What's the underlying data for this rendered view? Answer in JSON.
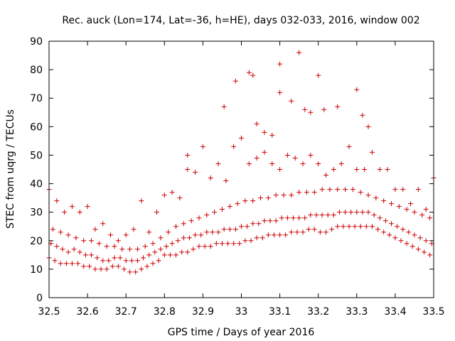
{
  "chart_data": {
    "type": "scatter",
    "title": "Rec. auck (Lon=174, Lat=-36, h=HE), days 032-033, 2016, window 002",
    "xlabel": "GPS time / Days of year 2016",
    "ylabel": "STEC from uqrg / TECUs",
    "xlim": [
      32.5,
      33.5
    ],
    "ylim": [
      0,
      90
    ],
    "xticks": [
      "32.5",
      "32.6",
      "32.7",
      "32.8",
      "32.9",
      "33",
      "33.1",
      "33.2",
      "33.3",
      "33.4",
      "33.5"
    ],
    "yticks": [
      "0",
      "10",
      "20",
      "30",
      "40",
      "50",
      "60",
      "70",
      "80",
      "90"
    ],
    "marker": "+",
    "color": "#cc0000",
    "series": [
      {
        "name": "band_low",
        "x": [
          32.5,
          32.515,
          32.53,
          32.545,
          32.56,
          32.575,
          32.59,
          32.605,
          32.62,
          32.635,
          32.65,
          32.665,
          32.68,
          32.695,
          32.71,
          32.725,
          32.74,
          32.755,
          32.77,
          32.785,
          32.8,
          32.815,
          32.83,
          32.845,
          32.86,
          32.875,
          32.89,
          32.905,
          32.92,
          32.935,
          32.95,
          32.965,
          32.98,
          32.995,
          33.01,
          33.025,
          33.04,
          33.055,
          33.07,
          33.085,
          33.1,
          33.115,
          33.13,
          33.145,
          33.16,
          33.175,
          33.19,
          33.205,
          33.22,
          33.235,
          33.25,
          33.265,
          33.28,
          33.295,
          33.31,
          33.325,
          33.34,
          33.355,
          33.37,
          33.385,
          33.4,
          33.415,
          33.43,
          33.445,
          33.46,
          33.475,
          33.49
        ],
        "y": [
          14,
          13,
          12,
          12,
          12,
          12,
          11,
          11,
          10,
          10,
          10,
          11,
          11,
          10,
          9,
          9,
          10,
          11,
          12,
          13,
          15,
          15,
          15,
          16,
          16,
          17,
          18,
          18,
          18,
          19,
          19,
          19,
          19,
          19,
          20,
          20,
          21,
          21,
          22,
          22,
          22,
          22,
          23,
          23,
          23,
          24,
          24,
          23,
          23,
          24,
          25,
          25,
          25,
          25,
          25,
          25,
          25,
          24,
          23,
          22,
          21,
          20,
          19,
          18,
          17,
          16,
          15
        ]
      },
      {
        "name": "band_mid",
        "x": [
          32.505,
          32.52,
          32.535,
          32.55,
          32.565,
          32.58,
          32.595,
          32.61,
          32.625,
          32.64,
          32.655,
          32.67,
          32.685,
          32.7,
          32.715,
          32.73,
          32.745,
          32.76,
          32.775,
          32.79,
          32.805,
          32.82,
          32.835,
          32.85,
          32.865,
          32.88,
          32.895,
          32.91,
          32.925,
          32.94,
          32.955,
          32.97,
          32.985,
          33.0,
          33.015,
          33.03,
          33.045,
          33.06,
          33.075,
          33.09,
          33.105,
          33.12,
          33.135,
          33.15,
          33.165,
          33.18,
          33.195,
          33.21,
          33.225,
          33.24,
          33.255,
          33.27,
          33.285,
          33.3,
          33.315,
          33.33,
          33.345,
          33.36,
          33.375,
          33.39,
          33.405,
          33.42,
          33.435,
          33.45,
          33.465,
          33.48,
          33.495
        ],
        "y": [
          19,
          18,
          17,
          16,
          17,
          16,
          15,
          15,
          14,
          13,
          13,
          14,
          14,
          13,
          13,
          13,
          14,
          15,
          16,
          17,
          18,
          19,
          20,
          21,
          21,
          22,
          22,
          23,
          23,
          23,
          24,
          24,
          24,
          25,
          25,
          26,
          26,
          27,
          27,
          27,
          28,
          28,
          28,
          28,
          28,
          29,
          29,
          29,
          29,
          29,
          30,
          30,
          30,
          30,
          30,
          30,
          29,
          28,
          27,
          26,
          25,
          24,
          23,
          22,
          21,
          20,
          19
        ]
      },
      {
        "name": "band_upper",
        "x": [
          32.51,
          32.53,
          32.55,
          32.57,
          32.59,
          32.61,
          32.63,
          32.65,
          32.67,
          32.69,
          32.71,
          32.73,
          32.75,
          32.77,
          32.79,
          32.81,
          32.83,
          32.85,
          32.87,
          32.89,
          32.91,
          32.93,
          32.95,
          32.97,
          32.99,
          33.01,
          33.03,
          33.05,
          33.07,
          33.09,
          33.11,
          33.13,
          33.15,
          33.17,
          33.19,
          33.21,
          33.23,
          33.25,
          33.27,
          33.29,
          33.31,
          33.33,
          33.35,
          33.37,
          33.39,
          33.41,
          33.43,
          33.45,
          33.47,
          33.49
        ],
        "y": [
          24,
          23,
          22,
          21,
          20,
          20,
          19,
          18,
          18,
          17,
          17,
          17,
          18,
          19,
          21,
          23,
          25,
          26,
          27,
          28,
          29,
          30,
          31,
          32,
          33,
          34,
          34,
          35,
          35,
          36,
          36,
          36,
          37,
          37,
          37,
          38,
          38,
          38,
          38,
          38,
          37,
          36,
          35,
          34,
          33,
          32,
          31,
          30,
          29,
          28
        ]
      },
      {
        "name": "band_high",
        "x": [
          32.5,
          32.52,
          32.54,
          32.56,
          32.58,
          32.6,
          32.62,
          32.64,
          32.66,
          32.68,
          32.7,
          32.72,
          32.74,
          32.76,
          32.78,
          32.8,
          32.82,
          32.84,
          32.86,
          32.88,
          32.9,
          32.92,
          32.94,
          32.96,
          32.98,
          33.0,
          33.02,
          33.04,
          33.06,
          33.08,
          33.1,
          33.12,
          33.14,
          33.16,
          33.18,
          33.2,
          33.22,
          33.24,
          33.26,
          33.28,
          33.3,
          33.32,
          33.34,
          33.36,
          33.38,
          33.4,
          33.42,
          33.44,
          33.46,
          33.48,
          33.5
        ],
        "y": [
          38,
          34,
          30,
          32,
          30,
          32,
          24,
          26,
          22,
          20,
          22,
          24,
          34,
          23,
          30,
          36,
          37,
          35,
          45,
          44,
          53,
          42,
          47,
          41,
          53,
          56,
          47,
          49,
          51,
          47,
          45,
          50,
          49,
          47,
          50,
          47,
          43,
          45,
          47,
          53,
          45,
          45,
          51,
          45,
          45,
          38,
          38,
          33,
          38,
          31,
          42
        ]
      },
      {
        "name": "outliers",
        "x": [
          32.955,
          32.985,
          33.02,
          33.03,
          33.1,
          33.1,
          33.15,
          33.165,
          33.2,
          33.215,
          33.25,
          33.3,
          33.315,
          33.04,
          33.13,
          33.18,
          33.33,
          32.86,
          33.08,
          33.06
        ],
        "y": [
          67,
          76,
          79,
          78,
          82,
          72,
          86,
          66,
          78,
          66,
          67,
          73,
          64,
          61,
          69,
          65,
          60,
          50,
          57,
          58
        ]
      }
    ]
  }
}
